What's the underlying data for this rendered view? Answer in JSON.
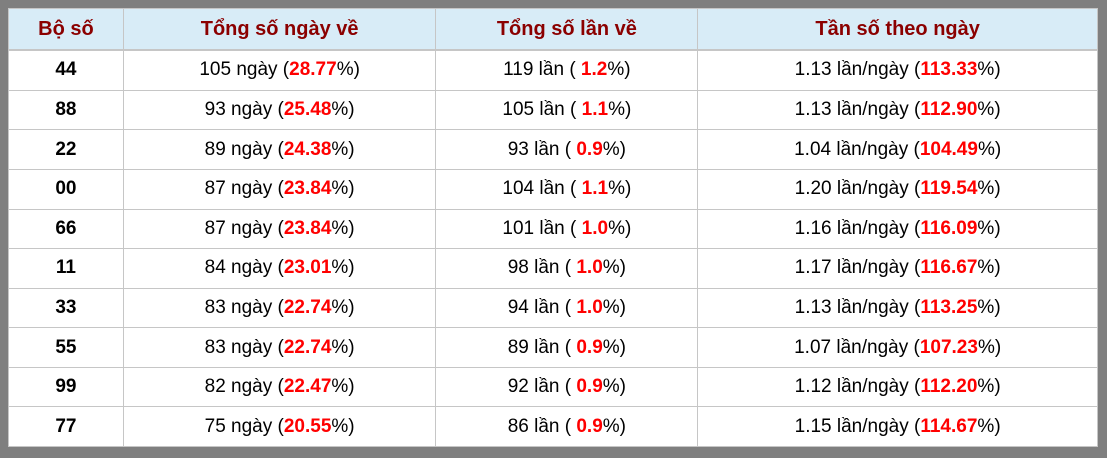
{
  "colors": {
    "frame_background": "#7f7f7f",
    "header_background": "#d8ecf7",
    "header_text": "#8b0000",
    "value_highlight": "#ff0000",
    "cell_text": "#000000",
    "border": "#c6c6c6"
  },
  "table": {
    "columns": [
      {
        "id": "pair",
        "label": "Bộ số"
      },
      {
        "id": "days",
        "label": "Tổng số ngày về"
      },
      {
        "id": "times",
        "label": "Tổng số lần về"
      },
      {
        "id": "freq",
        "label": "Tần số theo ngày"
      }
    ],
    "rows": [
      {
        "pair": "44",
        "days": {
          "pre": "105 ngày (",
          "val": "28.77",
          "post": "%)"
        },
        "times": {
          "pre": "119 lần ( ",
          "val": "1.2",
          "post": "%)"
        },
        "freq": {
          "pre": "1.13 lần/ngày (",
          "val": "113.33",
          "post": "%)"
        }
      },
      {
        "pair": "88",
        "days": {
          "pre": "93 ngày (",
          "val": "25.48",
          "post": "%)"
        },
        "times": {
          "pre": "105 lần ( ",
          "val": "1.1",
          "post": "%)"
        },
        "freq": {
          "pre": "1.13 lần/ngày (",
          "val": "112.90",
          "post": "%)"
        }
      },
      {
        "pair": "22",
        "days": {
          "pre": "89 ngày (",
          "val": "24.38",
          "post": "%)"
        },
        "times": {
          "pre": "93 lần ( ",
          "val": "0.9",
          "post": "%)"
        },
        "freq": {
          "pre": "1.04 lần/ngày (",
          "val": "104.49",
          "post": "%)"
        }
      },
      {
        "pair": "00",
        "days": {
          "pre": "87 ngày (",
          "val": "23.84",
          "post": "%)"
        },
        "times": {
          "pre": "104 lần ( ",
          "val": "1.1",
          "post": "%)"
        },
        "freq": {
          "pre": "1.20 lần/ngày (",
          "val": "119.54",
          "post": "%)"
        }
      },
      {
        "pair": "66",
        "days": {
          "pre": "87 ngày (",
          "val": "23.84",
          "post": "%)"
        },
        "times": {
          "pre": "101 lần ( ",
          "val": "1.0",
          "post": "%)"
        },
        "freq": {
          "pre": "1.16 lần/ngày (",
          "val": "116.09",
          "post": "%)"
        }
      },
      {
        "pair": "11",
        "days": {
          "pre": "84 ngày (",
          "val": "23.01",
          "post": "%)"
        },
        "times": {
          "pre": "98 lần ( ",
          "val": "1.0",
          "post": "%)"
        },
        "freq": {
          "pre": "1.17 lần/ngày (",
          "val": "116.67",
          "post": "%)"
        }
      },
      {
        "pair": "33",
        "days": {
          "pre": "83 ngày (",
          "val": "22.74",
          "post": "%)"
        },
        "times": {
          "pre": "94 lần ( ",
          "val": "1.0",
          "post": "%)"
        },
        "freq": {
          "pre": "1.13 lần/ngày (",
          "val": "113.25",
          "post": "%)"
        }
      },
      {
        "pair": "55",
        "days": {
          "pre": "83 ngày (",
          "val": "22.74",
          "post": "%)"
        },
        "times": {
          "pre": "89 lần ( ",
          "val": "0.9",
          "post": "%)"
        },
        "freq": {
          "pre": "1.07 lần/ngày (",
          "val": "107.23",
          "post": "%)"
        }
      },
      {
        "pair": "99",
        "days": {
          "pre": "82 ngày (",
          "val": "22.47",
          "post": "%)"
        },
        "times": {
          "pre": "92 lần ( ",
          "val": "0.9",
          "post": "%)"
        },
        "freq": {
          "pre": "1.12 lần/ngày (",
          "val": "112.20",
          "post": "%)"
        }
      },
      {
        "pair": "77",
        "days": {
          "pre": "75 ngày (",
          "val": "20.55",
          "post": "%)"
        },
        "times": {
          "pre": "86 lần ( ",
          "val": "0.9",
          "post": "%)"
        },
        "freq": {
          "pre": "1.15 lần/ngày (",
          "val": "114.67",
          "post": "%)"
        }
      }
    ]
  },
  "chart_data": {
    "type": "table",
    "columns": [
      "Bộ số",
      "Tổng số ngày về",
      "Tổng số lần về",
      "Tần số theo ngày"
    ],
    "rows": [
      [
        "44",
        "105 ngày (28.77%)",
        "119 lần ( 1.2%)",
        "1.13 lần/ngày (113.33%)"
      ],
      [
        "88",
        "93 ngày (25.48%)",
        "105 lần ( 1.1%)",
        "1.13 lần/ngày (112.90%)"
      ],
      [
        "22",
        "89 ngày (24.38%)",
        "93 lần ( 0.9%)",
        "1.04 lần/ngày (104.49%)"
      ],
      [
        "00",
        "87 ngày (23.84%)",
        "104 lần ( 1.1%)",
        "1.20 lần/ngày (119.54%)"
      ],
      [
        "66",
        "87 ngày (23.84%)",
        "101 lần ( 1.0%)",
        "1.16 lần/ngày (116.09%)"
      ],
      [
        "11",
        "84 ngày (23.01%)",
        "98 lần ( 1.0%)",
        "1.17 lần/ngày (116.67%)"
      ],
      [
        "33",
        "83 ngày (22.74%)",
        "94 lần ( 1.0%)",
        "1.13 lần/ngày (113.25%)"
      ],
      [
        "55",
        "83 ngày (22.74%)",
        "89 lần ( 0.9%)",
        "1.07 lần/ngày (107.23%)"
      ],
      [
        "99",
        "82 ngày (22.47%)",
        "92 lần ( 0.9%)",
        "1.12 lần/ngày (112.20%)"
      ],
      [
        "77",
        "75 ngày (20.55%)",
        "86 lần ( 0.9%)",
        "1.15 lần/ngày (114.67%)"
      ]
    ]
  }
}
